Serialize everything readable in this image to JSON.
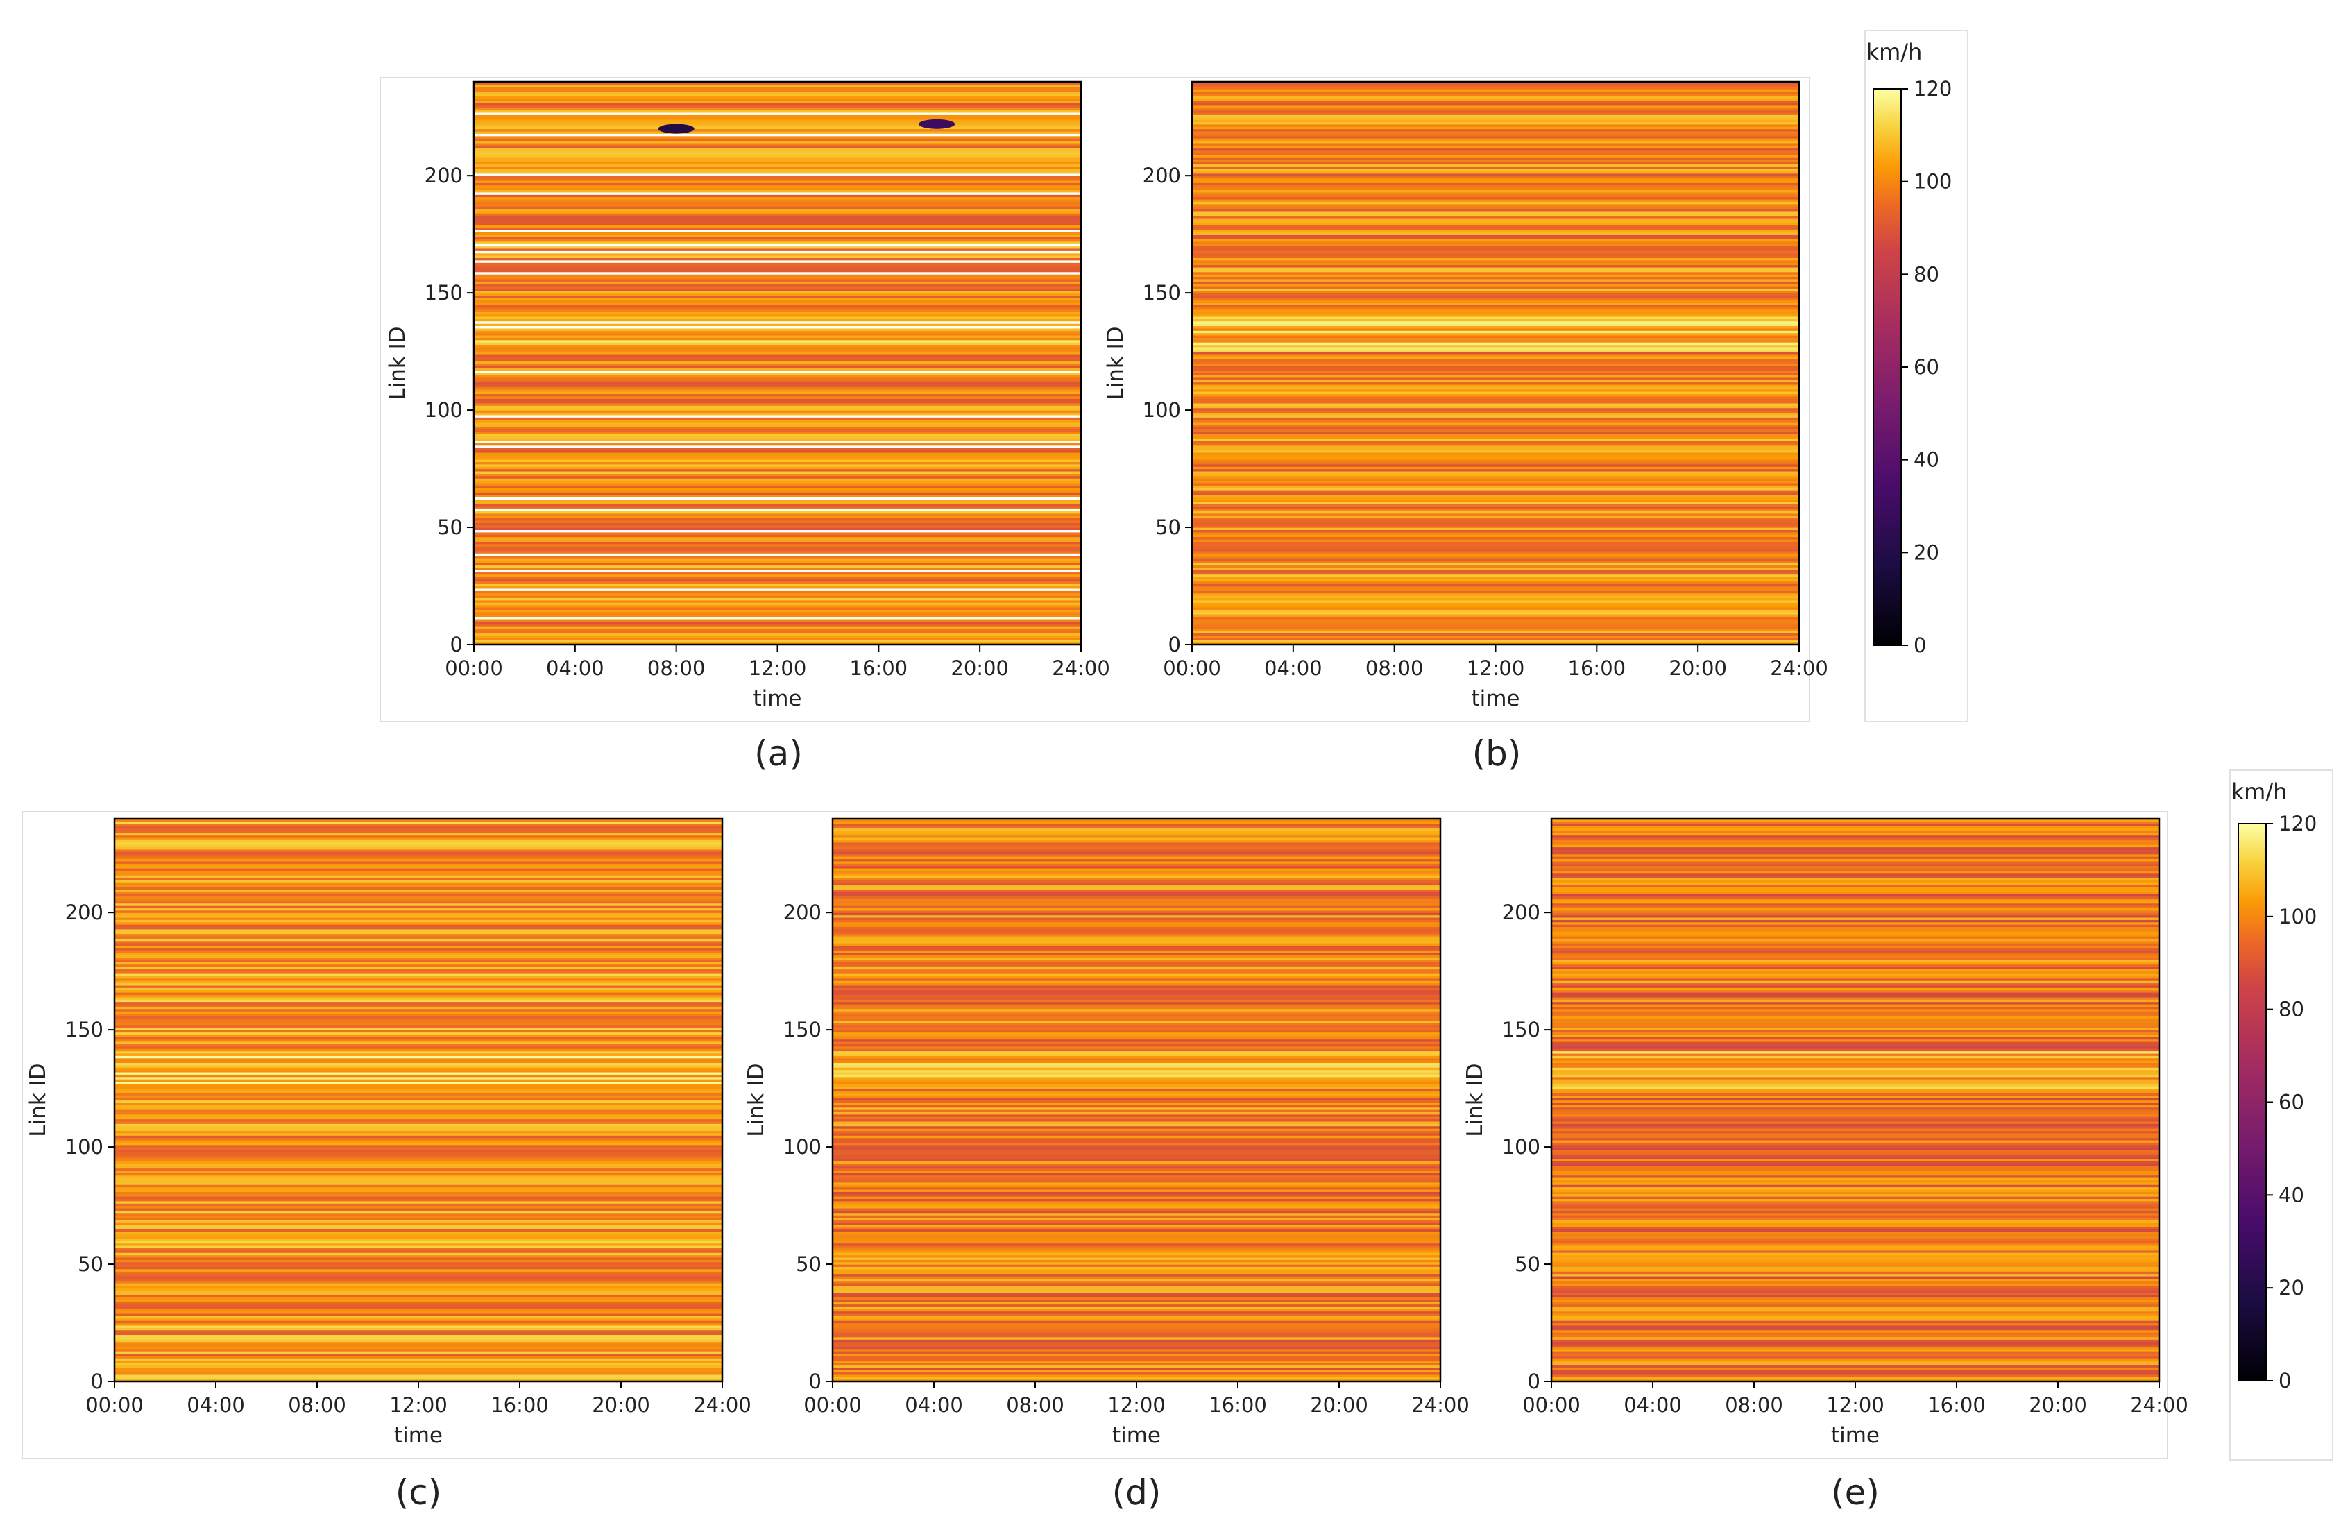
{
  "figure": {
    "row_top_frame": "panels (a)-(b)",
    "row_bottom_frame": "panels (c)-(e)"
  },
  "colorbar": {
    "unit": "km/h",
    "ticks": [
      0,
      20,
      40,
      60,
      80,
      100,
      120
    ],
    "range": [
      0,
      120
    ],
    "colormap": "inferno"
  },
  "chart_data": [
    {
      "type": "heatmap",
      "panel_label": "(a)",
      "title": "",
      "xlabel": "time",
      "ylabel": "Link ID",
      "xticks": [
        "00:00",
        "04:00",
        "08:00",
        "12:00",
        "16:00",
        "20:00",
        "24:00"
      ],
      "yticks": [
        0,
        50,
        100,
        150,
        200
      ],
      "xlim": [
        0,
        24
      ],
      "ylim": [
        0,
        240
      ],
      "value_range_kmh": [
        0,
        120
      ],
      "description_value": "raw speeds with missing rows (white gaps) and congestion spots",
      "missing_link_rows": [
        11,
        23,
        31,
        38,
        48,
        57,
        62,
        84,
        86,
        97,
        116,
        135,
        137,
        158,
        163,
        167,
        170,
        176,
        192,
        200,
        217,
        226
      ],
      "low_speed_spots": [
        {
          "time_h": 8.0,
          "link": 220,
          "speed_kmh": 20
        },
        {
          "time_h": 18.3,
          "link": 222,
          "speed_kmh": 30
        }
      ],
      "mean_speed_kmh": 100
    },
    {
      "type": "heatmap",
      "panel_label": "(b)",
      "title": "",
      "xlabel": "time",
      "ylabel": "Link ID",
      "xticks": [
        "00:00",
        "04:00",
        "08:00",
        "12:00",
        "16:00",
        "20:00",
        "24:00"
      ],
      "yticks": [
        0,
        50,
        100,
        150,
        200
      ],
      "xlim": [
        0,
        24
      ],
      "ylim": [
        0,
        240
      ],
      "value_range_kmh": [
        0,
        120
      ],
      "mean_speed_kmh": 100
    },
    {
      "type": "heatmap",
      "panel_label": "(c)",
      "title": "",
      "xlabel": "time",
      "ylabel": "Link ID",
      "xticks": [
        "00:00",
        "04:00",
        "08:00",
        "12:00",
        "16:00",
        "20:00",
        "24:00"
      ],
      "yticks": [
        0,
        50,
        100,
        150,
        200
      ],
      "xlim": [
        0,
        24
      ],
      "ylim": [
        0,
        240
      ],
      "value_range_kmh": [
        0,
        120
      ],
      "mean_speed_kmh": 102
    },
    {
      "type": "heatmap",
      "panel_label": "(d)",
      "title": "",
      "xlabel": "time",
      "ylabel": "Link ID",
      "xticks": [
        "00:00",
        "04:00",
        "08:00",
        "12:00",
        "16:00",
        "20:00",
        "24:00"
      ],
      "yticks": [
        0,
        50,
        100,
        150,
        200
      ],
      "xlim": [
        0,
        24
      ],
      "ylim": [
        0,
        240
      ],
      "value_range_kmh": [
        0,
        120
      ],
      "mean_speed_kmh": 98
    },
    {
      "type": "heatmap",
      "panel_label": "(e)",
      "title": "",
      "xlabel": "time",
      "ylabel": "Link ID",
      "xticks": [
        "00:00",
        "04:00",
        "08:00",
        "12:00",
        "16:00",
        "20:00",
        "24:00"
      ],
      "yticks": [
        0,
        50,
        100,
        150,
        200
      ],
      "xlim": [
        0,
        24
      ],
      "ylim": [
        0,
        240
      ],
      "value_range_kmh": [
        0,
        120
      ],
      "mean_speed_kmh": 97
    }
  ]
}
